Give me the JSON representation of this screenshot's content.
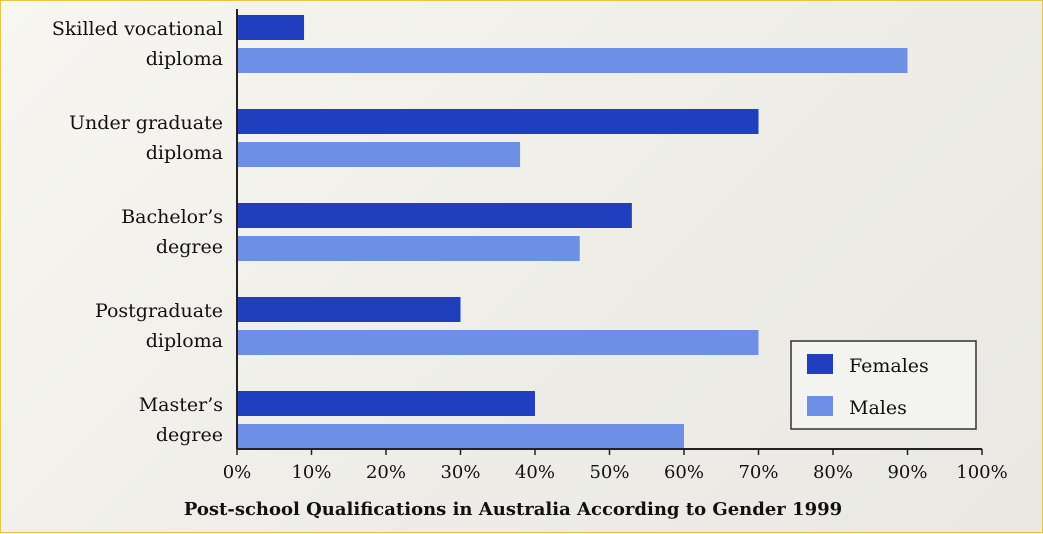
{
  "chart_data": {
    "type": "bar",
    "orientation": "horizontal",
    "title": "Post-school Qualifications in Australia According to Gender 1999",
    "categories": [
      [
        "Skilled vocational",
        "diploma"
      ],
      [
        "Under graduate",
        "diploma"
      ],
      [
        "Bachelor’s",
        "degree"
      ],
      [
        "Postgraduate",
        "diploma"
      ],
      [
        "Master’s",
        "degree"
      ]
    ],
    "series": [
      {
        "name": "Females",
        "color": "#1f3fbf",
        "values": [
          9,
          70,
          53,
          30,
          40
        ]
      },
      {
        "name": "Males",
        "color": "#6d8fe6",
        "values": [
          90,
          38,
          46,
          70,
          60
        ]
      }
    ],
    "xlim": [
      0,
      100
    ],
    "x_ticks": [
      "0%",
      "10%",
      "20%",
      "30%",
      "40%",
      "50%",
      "60%",
      "70%",
      "80%",
      "90%",
      "100%"
    ],
    "legend_position": "right",
    "grid": false
  }
}
